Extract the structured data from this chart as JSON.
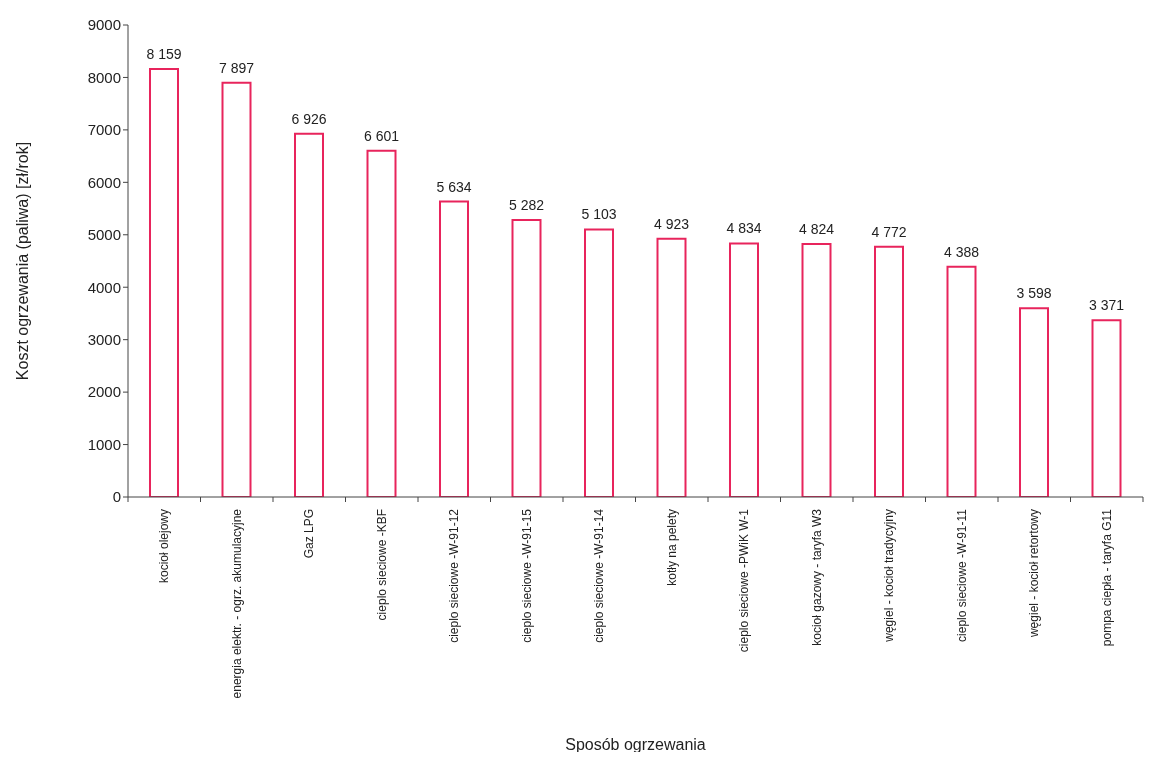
{
  "chart_data": {
    "type": "bar",
    "xlabel": "Sposób ogrzewania",
    "ylabel": "Koszt ogrzewania (paliwa) [zł/rok]",
    "categories": [
      "kocioł olejowy",
      "energia elektr. - ogrz. akumulacyjne",
      "Gaz LPG",
      "cieplo sieciowe -KBF",
      "cieplo sieciowe -W-91-12",
      "cieplo sieciowe -W-91-15",
      "cieplo sieciowe -W-91-14",
      "kotły na pelety",
      "cieplo sieciowe -PWiK W-1",
      "kocioł gazowy - taryfa W3",
      "węgiel - kocioł tradycyjny",
      "cieplo sieciowe -W-91-11",
      "węgiel - kocioł retortowy",
      "pompa ciepła - taryfa G11"
    ],
    "values": [
      8159,
      7897,
      6926,
      6601,
      5634,
      5282,
      5103,
      4923,
      4834,
      4824,
      4772,
      4388,
      3598,
      3371
    ],
    "value_labels": [
      "8 159",
      "7 897",
      "6 926",
      "6 601",
      "5 634",
      "5 282",
      "5 103",
      "4 923",
      "4 834",
      "4 824",
      "4 772",
      "4 388",
      "3 598",
      "3 371"
    ],
    "color": "#e8245c",
    "ylim": [
      0,
      9000
    ],
    "yticks": [
      0,
      1000,
      2000,
      3000,
      4000,
      5000,
      6000,
      7000,
      8000,
      9000
    ],
    "grid": false,
    "legend": false
  }
}
